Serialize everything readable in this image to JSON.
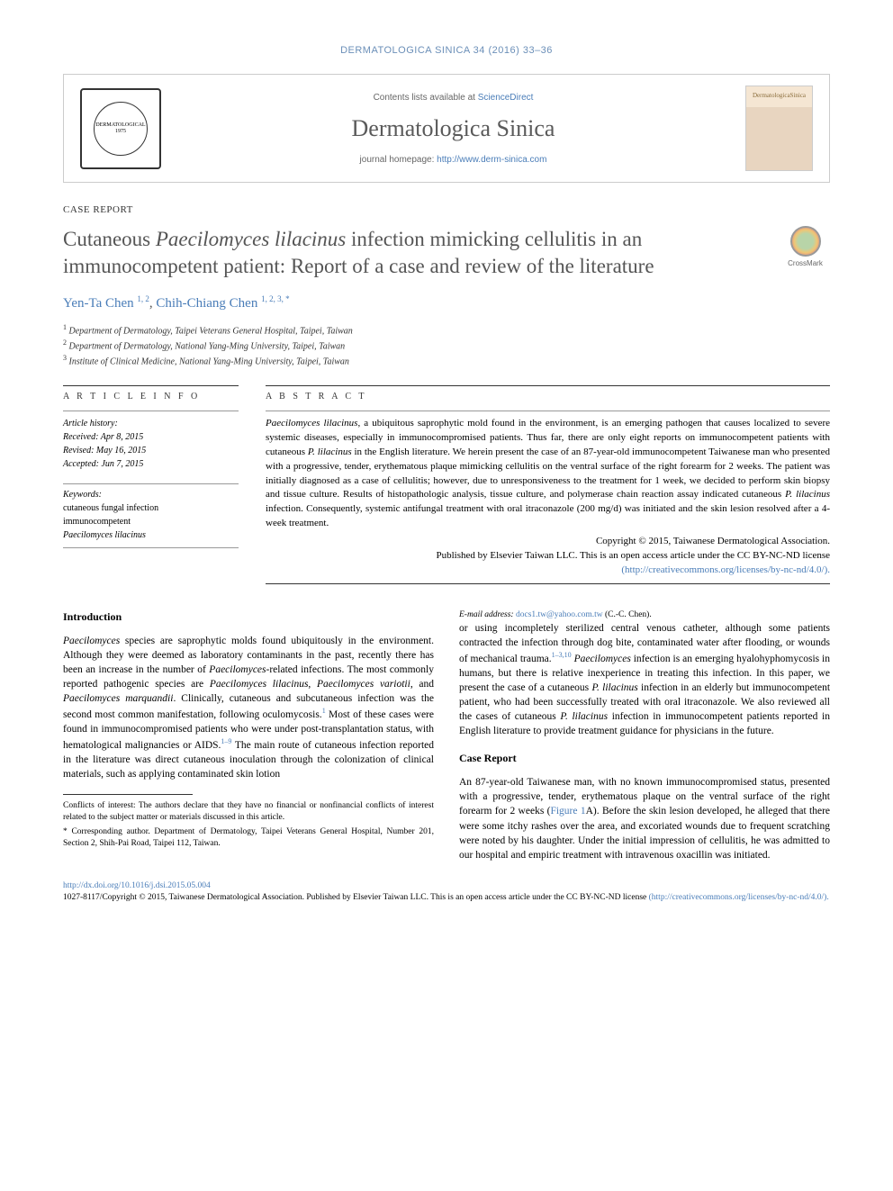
{
  "journal_header": "DERMATOLOGICA SINICA 34 (2016) 33–36",
  "masthead": {
    "contents_prefix": "Contents lists available at ",
    "contents_link": "ScienceDirect",
    "journal_name": "Dermatologica Sinica",
    "homepage_prefix": "journal homepage: ",
    "homepage_link": "http://www.derm-sinica.com",
    "logo_text": "DERMATOLOGICAL 1975",
    "cover_text": "DermatologicaSinica"
  },
  "article": {
    "type": "CASE REPORT",
    "title_pre": "Cutaneous ",
    "title_italic": "Paecilomyces lilacinus",
    "title_post": " infection mimicking cellulitis in an immunocompetent patient: Report of a case and review of the literature",
    "crossmark": "CrossMark"
  },
  "authors": {
    "a1_name": "Yen-Ta Chen",
    "a1_sup": "1, 2",
    "a2_name": "Chih-Chiang Chen",
    "a2_sup": "1, 2, 3, *"
  },
  "affiliations": {
    "a1": "Department of Dermatology, Taipei Veterans General Hospital, Taipei, Taiwan",
    "a2": "Department of Dermatology, National Yang-Ming University, Taipei, Taiwan",
    "a3": "Institute of Clinical Medicine, National Yang-Ming University, Taipei, Taiwan"
  },
  "info": {
    "heading": "A R T I C L E   I N F O",
    "history_label": "Article history:",
    "received": "Received: Apr 8, 2015",
    "revised": "Revised: May 16, 2015",
    "accepted": "Accepted: Jun 7, 2015",
    "keywords_label": "Keywords:",
    "kw1": "cutaneous fungal infection",
    "kw2": "immunocompetent",
    "kw3": "Paecilomyces lilacinus"
  },
  "abstract": {
    "heading": "A B S T R A C T",
    "text_1": "Paecilomyces lilacinus",
    "text_2": ", a ubiquitous saprophytic mold found in the environment, is an emerging pathogen that causes localized to severe systemic diseases, especially in immunocompromised patients. Thus far, there are only eight reports on immunocompetent patients with cutaneous ",
    "text_3": "P. lilacinus",
    "text_4": " in the English literature. We herein present the case of an 87-year-old immunocompetent Taiwanese man who presented with a progressive, tender, erythematous plaque mimicking cellulitis on the ventral surface of the right forearm for 2 weeks. The patient was initially diagnosed as a case of cellulitis; however, due to unresponsiveness to the treatment for 1 week, we decided to perform skin biopsy and tissue culture. Results of histopathologic analysis, tissue culture, and polymerase chain reaction assay indicated cutaneous ",
    "text_5": "P. lilacinus",
    "text_6": " infection. Consequently, systemic antifungal treatment with oral itraconazole (200 mg/d) was initiated and the skin lesion resolved after a 4-week treatment.",
    "copyright_1": "Copyright © 2015, Taiwanese Dermatological Association.",
    "copyright_2": "Published by Elsevier Taiwan LLC. This is an open access article under the CC BY-NC-ND license",
    "copyright_link": "(http://creativecommons.org/licenses/by-nc-nd/4.0/)."
  },
  "body": {
    "intro_heading": "Introduction",
    "intro_p1_a": "Paecilomyces",
    "intro_p1_b": " species are saprophytic molds found ubiquitously in the environment. Although they were deemed as laboratory contaminants in the past, recently there has been an increase in the number of ",
    "intro_p1_c": "Paecilomyces",
    "intro_p1_d": "-related infections. The most commonly reported pathogenic species are ",
    "intro_p1_e": "Paecilomyces lilacinus",
    "intro_p1_f": ", ",
    "intro_p1_g": "Paecilomyces variotii",
    "intro_p1_h": ", and ",
    "intro_p1_i": "Paecilomyces marquandii",
    "intro_p1_j": ". Clinically, cutaneous and subcutaneous infection was the second most common manifestation, following oculomycosis.",
    "intro_sup1": "1",
    "intro_p1_k": " Most of these cases were found in immunocompromised patients who were under post-transplantation status, with hematological malignancies or AIDS.",
    "intro_sup2": "1–9",
    "intro_p1_l": " The main route of cutaneous infection reported in the literature was direct cutaneous inoculation through the colonization of clinical materials, such as applying contaminated skin lotion",
    "col2_a": "or using incompletely sterilized central venous catheter, although some patients contracted the infection through dog bite, contaminated water after flooding, or wounds of mechanical trauma.",
    "col2_sup1": "1–3,10",
    "col2_b": " ",
    "col2_c": "Paecilomyces",
    "col2_d": " infection is an emerging hyalohyphomycosis in humans, but there is relative inexperience in treating this infection. In this paper, we present the case of a cutaneous ",
    "col2_e": "P. lilacinus",
    "col2_f": " infection in an elderly but immunocompetent patient, who had been successfully treated with oral itraconazole. We also reviewed all the cases of cutaneous ",
    "col2_g": "P. lilacinus",
    "col2_h": " infection in immunocompetent patients reported in English literature to provide treatment guidance for physicians in the future.",
    "case_heading": "Case Report",
    "case_a": "An 87-year-old Taiwanese man, with no known immunocompromised status, presented with a progressive, tender, erythematous plaque on the ventral surface of the right forearm for 2 weeks (",
    "case_fig": "Figure 1",
    "case_b": "A). Before the skin lesion developed, he alleged that there were some itchy rashes over the area, and excoriated wounds due to frequent scratching were noted by his daughter. Under the initial impression of cellulitis, he was admitted to our hospital and empiric treatment with intravenous oxacillin was initiated."
  },
  "footnotes": {
    "conflicts": "Conflicts of interest: The authors declare that they have no financial or nonfinancial conflicts of interest related to the subject matter or materials discussed in this article.",
    "corr": "* Corresponding author. Department of Dermatology, Taipei Veterans General Hospital, Number 201, Section 2, Shih-Pai Road, Taipei 112, Taiwan.",
    "email_label": "E-mail address: ",
    "email": "docs1.tw@yahoo.com.tw",
    "email_suffix": " (C.-C. Chen)."
  },
  "bottom": {
    "doi": "http://dx.doi.org/10.1016/j.dsi.2015.05.004",
    "issn": "1027-8117/Copyright © 2015, Taiwanese Dermatological Association. Published by Elsevier Taiwan LLC. This is an open access article under the CC BY-NC-ND license ",
    "license_link": "(http://creativecommons.org/licenses/by-nc-nd/4.0/)."
  },
  "colors": {
    "link": "#4a7db8",
    "header": "#6b8fb8",
    "text": "#000000",
    "muted": "#555555"
  }
}
